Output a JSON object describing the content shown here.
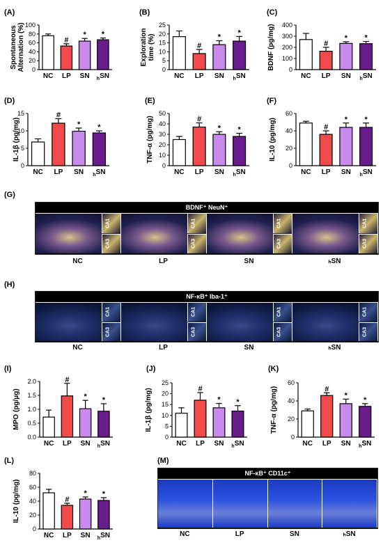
{
  "colors": {
    "NC": "#ffffff",
    "LP": "#f04a4a",
    "SN": "#c98aee",
    "hSN": "#6a1b8c"
  },
  "chart_data": [
    {
      "panel": "(A)",
      "type": "bar",
      "categories": [
        "NC",
        "LP",
        "SN",
        "hSN"
      ],
      "values": [
        76,
        53,
        64,
        67
      ],
      "errors": [
        4,
        5,
        6,
        4
      ],
      "marks": [
        "",
        "#",
        "*",
        "*"
      ],
      "ylabel": "Spontaneous Alternation (%)",
      "ylim": [
        0,
        100
      ],
      "yticks": [
        0,
        20,
        40,
        60,
        80,
        100
      ]
    },
    {
      "panel": "(B)",
      "type": "bar",
      "categories": [
        "NC",
        "LP",
        "SN",
        "hSN"
      ],
      "values": [
        18.5,
        9,
        14,
        16
      ],
      "errors": [
        3.2,
        2.3,
        2.2,
        2.6
      ],
      "marks": [
        "",
        "#",
        "*",
        "*"
      ],
      "ylabel": "Exploration time (%)",
      "ylim": [
        0,
        25
      ],
      "yticks": [
        0,
        5,
        10,
        15,
        20,
        25
      ]
    },
    {
      "panel": "(C)",
      "type": "bar",
      "categories": [
        "NC",
        "LP",
        "SN",
        "hSN"
      ],
      "values": [
        270,
        165,
        235,
        233
      ],
      "errors": [
        55,
        35,
        15,
        20
      ],
      "marks": [
        "",
        "#",
        "*",
        "*"
      ],
      "ylabel": "BDNF (pg/mg)",
      "ylim": [
        0,
        400
      ],
      "yticks": [
        0,
        100,
        200,
        300,
        400
      ]
    },
    {
      "panel": "(D)",
      "type": "bar",
      "categories": [
        "NC",
        "LP",
        "SN",
        "hSN"
      ],
      "values": [
        6.8,
        12.2,
        9.9,
        9.4
      ],
      "errors": [
        0.9,
        1.3,
        0.9,
        0.6
      ],
      "marks": [
        "",
        "#",
        "*",
        "*"
      ],
      "ylabel": "IL-1β (pg/mg)",
      "ylim": [
        0,
        15
      ],
      "yticks": [
        0,
        5,
        10,
        15
      ]
    },
    {
      "panel": "(E)",
      "type": "bar",
      "categories": [
        "NC",
        "LP",
        "SN",
        "hSN"
      ],
      "values": [
        25,
        37,
        30,
        28
      ],
      "errors": [
        3,
        4,
        2.5,
        3
      ],
      "marks": [
        "",
        "#",
        "*",
        "*"
      ],
      "ylabel": "TNF-α (pg/mg)",
      "ylim": [
        0,
        50
      ],
      "yticks": [
        0,
        10,
        20,
        30,
        40,
        50
      ]
    },
    {
      "panel": "(F)",
      "type": "bar",
      "categories": [
        "NC",
        "LP",
        "SN",
        "hSN"
      ],
      "values": [
        49,
        36,
        44,
        44
      ],
      "errors": [
        2,
        4,
        5,
        5
      ],
      "marks": [
        "",
        "#",
        "*",
        "*"
      ],
      "ylabel": "IL-10 (pg/mg)",
      "ylim": [
        0,
        60
      ],
      "yticks": [
        0,
        20,
        40,
        60
      ]
    },
    {
      "panel": "(I)",
      "type": "bar",
      "categories": [
        "NC",
        "LP",
        "SN",
        "hSN"
      ],
      "values": [
        0.72,
        1.48,
        1.02,
        0.93
      ],
      "errors": [
        0.25,
        0.45,
        0.3,
        0.27
      ],
      "marks": [
        "",
        "#",
        "*",
        "*"
      ],
      "ylabel": "MPO (pg/μg)",
      "ylim": [
        0,
        2.0
      ],
      "yticks": [
        0.0,
        0.5,
        1.0,
        1.5,
        2.0
      ]
    },
    {
      "panel": "(J)",
      "type": "bar",
      "categories": [
        "NC",
        "LP",
        "SN",
        "hSN"
      ],
      "values": [
        11,
        17,
        13.5,
        12
      ],
      "errors": [
        2.5,
        3.5,
        2,
        2.5
      ],
      "marks": [
        "",
        "#",
        "*",
        "*"
      ],
      "ylabel": "IL-1β (pg/mg)",
      "ylim": [
        0,
        25
      ],
      "yticks": [
        0,
        5,
        10,
        15,
        20,
        25
      ]
    },
    {
      "panel": "(K)",
      "type": "bar",
      "categories": [
        "NC",
        "LP",
        "SN",
        "hSN"
      ],
      "values": [
        29,
        46,
        37,
        34
      ],
      "errors": [
        2,
        3,
        5,
        3
      ],
      "marks": [
        "",
        "#",
        "*",
        "*"
      ],
      "ylabel": "TNF-α (pg/mg)",
      "ylim": [
        0,
        60
      ],
      "yticks": [
        0,
        20,
        40,
        60
      ]
    },
    {
      "panel": "(L)",
      "type": "bar",
      "categories": [
        "NC",
        "LP",
        "SN",
        "hSN"
      ],
      "values": [
        52,
        34,
        43,
        41
      ],
      "errors": [
        5,
        3,
        3,
        4
      ],
      "marks": [
        "",
        "#",
        "*",
        "*"
      ],
      "ylabel": "IL-10 (pg/mg)",
      "ylim": [
        0,
        80
      ],
      "yticks": [
        0,
        20,
        40,
        60,
        80
      ]
    }
  ],
  "micrographs": [
    {
      "panel": "(G)",
      "title": "BDNF⁺ NeuN⁺",
      "groups": [
        "NC",
        "LP",
        "SN",
        "ₕSN"
      ],
      "inset_labels": [
        "CA1",
        "CA3"
      ]
    },
    {
      "panel": "(H)",
      "title": "NF-κB⁺ Iba-1⁺",
      "groups": [
        "NC",
        "LP",
        "SN",
        "ₕSN"
      ],
      "inset_labels": [
        "CA1",
        "CA3"
      ]
    },
    {
      "panel": "(M)",
      "title": "NF-κB⁺ CD11c⁺",
      "groups": [
        "NC",
        "LP",
        "SN",
        "ₕSN"
      ]
    }
  ]
}
